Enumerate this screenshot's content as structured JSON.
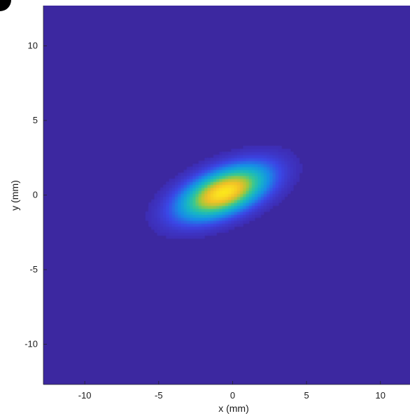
{
  "chart_data": {
    "type": "heatmap",
    "title": "",
    "xlabel": "x (mm)",
    "ylabel": "y (mm)",
    "xlim": [
      -12.8,
      12.0
    ],
    "ylim": [
      -12.7,
      12.7
    ],
    "xticks": [
      -10,
      -5,
      0,
      5,
      10
    ],
    "yticks": [
      -10,
      -5,
      0,
      5,
      10
    ],
    "xtick_labels": [
      "-10",
      "-5",
      "0",
      "5",
      "10"
    ],
    "ytick_labels": [
      "-10",
      "-5",
      "0",
      "5",
      "10"
    ],
    "grid": false,
    "legend": "none",
    "colormap": "parula",
    "background_color": "#3c28a0",
    "distribution": {
      "shape": "tilted elliptical gaussian",
      "center": [
        -0.6,
        0.2
      ],
      "sigma_major_mm": 2.1,
      "sigma_minor_mm": 0.95,
      "rotation_deg": 22,
      "peak_value": 1.0
    }
  }
}
